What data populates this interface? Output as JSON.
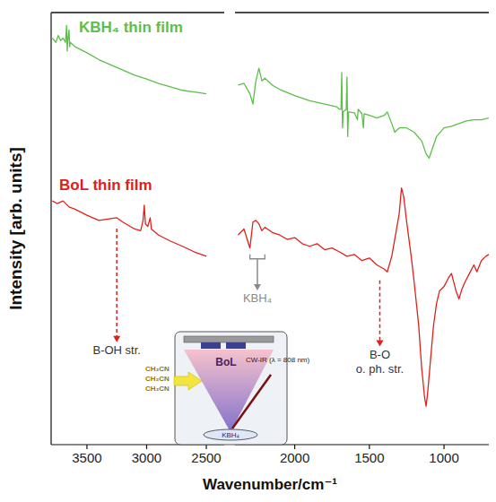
{
  "chart_data": [
    {
      "type": "line",
      "y_label": "Intensity [arb. units]",
      "xlim": [
        3800,
        2350
      ],
      "xticks": [
        3500,
        3000,
        2500
      ],
      "ylim": [
        0,
        100
      ],
      "tick_labels": "x",
      "grid": false,
      "series": [
        {
          "name": "KBH₄ thin film",
          "color": "#5cbf4a",
          "x": [
            3790,
            3760,
            3740,
            3720,
            3700,
            3680,
            3670,
            3665,
            3660,
            3650,
            3645,
            3640,
            3600,
            3500,
            3400,
            3300,
            3200,
            3100,
            3000,
            2900,
            2800,
            2700,
            2600,
            2500
          ],
          "values": [
            94.1,
            93.1,
            94.7,
            93.5,
            94.1,
            93.1,
            97.0,
            91.1,
            93.5,
            96.0,
            92.1,
            93.1,
            92.1,
            90.7,
            89.1,
            87.9,
            86.7,
            85.5,
            84.6,
            83.6,
            82.8,
            82.0,
            81.6,
            81.2
          ]
        },
        {
          "name": "BoL thin film",
          "color": "#e0201b",
          "x": [
            3790,
            3750,
            3700,
            3650,
            3600,
            3500,
            3400,
            3300,
            3250,
            3200,
            3100,
            3050,
            3030,
            3020,
            3010,
            2990,
            2970,
            2960,
            2900,
            2800,
            2700,
            2600,
            2500
          ],
          "values": [
            56.4,
            55.8,
            56.4,
            55.0,
            54.5,
            53.1,
            51.9,
            52.3,
            52.5,
            51.5,
            49.9,
            49.5,
            51.9,
            55.4,
            51.1,
            50.5,
            52.5,
            49.9,
            48.5,
            47.1,
            45.9,
            44.6,
            43.6
          ]
        }
      ],
      "annotations": [
        {
          "text": "B-OH str.",
          "xy": [
            3250,
            50
          ],
          "xytext": [
            3250,
            21
          ],
          "color": "#e0201b"
        }
      ]
    },
    {
      "type": "line",
      "x_label": "Wavenumber/cm⁻¹",
      "xlim": [
        2400,
        700
      ],
      "xticks": [
        2000,
        1500,
        1000
      ],
      "ylim": [
        0,
        100
      ],
      "tick_labels": "x",
      "grid": false,
      "series": [
        {
          "color": "#5cbf4a",
          "x": [
            2380,
            2340,
            2300,
            2280,
            2260,
            2240,
            2220,
            2200,
            2150,
            2100,
            2000,
            1900,
            1800,
            1720,
            1700,
            1690,
            1685,
            1680,
            1675,
            1655,
            1650,
            1645,
            1640,
            1600,
            1580,
            1575,
            1550,
            1540,
            1535,
            1500,
            1450,
            1400,
            1380,
            1350,
            1330,
            1300,
            1250,
            1200,
            1150,
            1120,
            1100,
            1080,
            1050,
            1000,
            950,
            900,
            850,
            800,
            750,
            700
          ],
          "values": [
            83.2,
            83.6,
            81.2,
            78.8,
            84.2,
            87.1,
            84.2,
            84.8,
            83.2,
            82.2,
            80.8,
            79.6,
            78.8,
            78.2,
            77.6,
            77.6,
            86.1,
            73.3,
            77.0,
            77.6,
            85.1,
            71.3,
            77.0,
            76.8,
            75.2,
            77.6,
            76.6,
            73.3,
            76.6,
            76.2,
            75.6,
            76.2,
            77.0,
            74.3,
            72.3,
            73.3,
            73.3,
            72.3,
            70.3,
            67.3,
            66.3,
            68.3,
            71.3,
            73.3,
            73.7,
            74.3,
            74.9,
            75.2,
            75.2,
            75.6
          ]
        },
        {
          "color": "#e0201b",
          "x": [
            2380,
            2340,
            2300,
            2280,
            2260,
            2240,
            2220,
            2200,
            2150,
            2100,
            2050,
            2000,
            1950,
            1900,
            1850,
            1800,
            1750,
            1700,
            1650,
            1600,
            1550,
            1500,
            1450,
            1400,
            1380,
            1350,
            1320,
            1300,
            1285,
            1270,
            1250,
            1220,
            1200,
            1170,
            1150,
            1130,
            1120,
            1110,
            1090,
            1070,
            1050,
            1030,
            1000,
            970,
            950,
            920,
            900,
            880,
            860,
            830,
            800,
            780,
            750,
            720,
            700
          ],
          "values": [
            48.5,
            49.9,
            45.5,
            51.5,
            51.9,
            51.1,
            49.5,
            50.3,
            49.1,
            48.5,
            47.5,
            47.9,
            46.5,
            45.9,
            46.5,
            45.1,
            45.5,
            44.6,
            43.6,
            44.0,
            42.6,
            43.2,
            41.6,
            40.6,
            40.0,
            43.6,
            49.5,
            53.5,
            59.4,
            57.4,
            51.5,
            43.6,
            37.6,
            27.7,
            17.8,
            10.9,
            8.9,
            11.9,
            19.8,
            27.7,
            32.7,
            35.6,
            36.6,
            38.6,
            39.6,
            35.6,
            33.7,
            36.0,
            37.6,
            39.6,
            41.6,
            40.0,
            42.6,
            43.6,
            44.0
          ]
        }
      ],
      "annotations": [
        {
          "text": "KBH₄",
          "xy": [
            2250,
            43
          ],
          "xytext": [
            2250,
            33
          ],
          "bracket": [
            2300,
            2200
          ],
          "color": "#8a8a8a"
        },
        {
          "text": "B-O\no. ph. str.",
          "xy": [
            1430,
            38
          ],
          "xytext": [
            1430,
            20
          ],
          "color": "#e0201b"
        }
      ]
    }
  ],
  "inset": {
    "sample": "BoL",
    "solvent": [
      "CH₃CN",
      "CH₃CN",
      "CH₃CN"
    ],
    "laser": "CW-IR (λ = 808 nm)",
    "target": "KBH₄"
  }
}
